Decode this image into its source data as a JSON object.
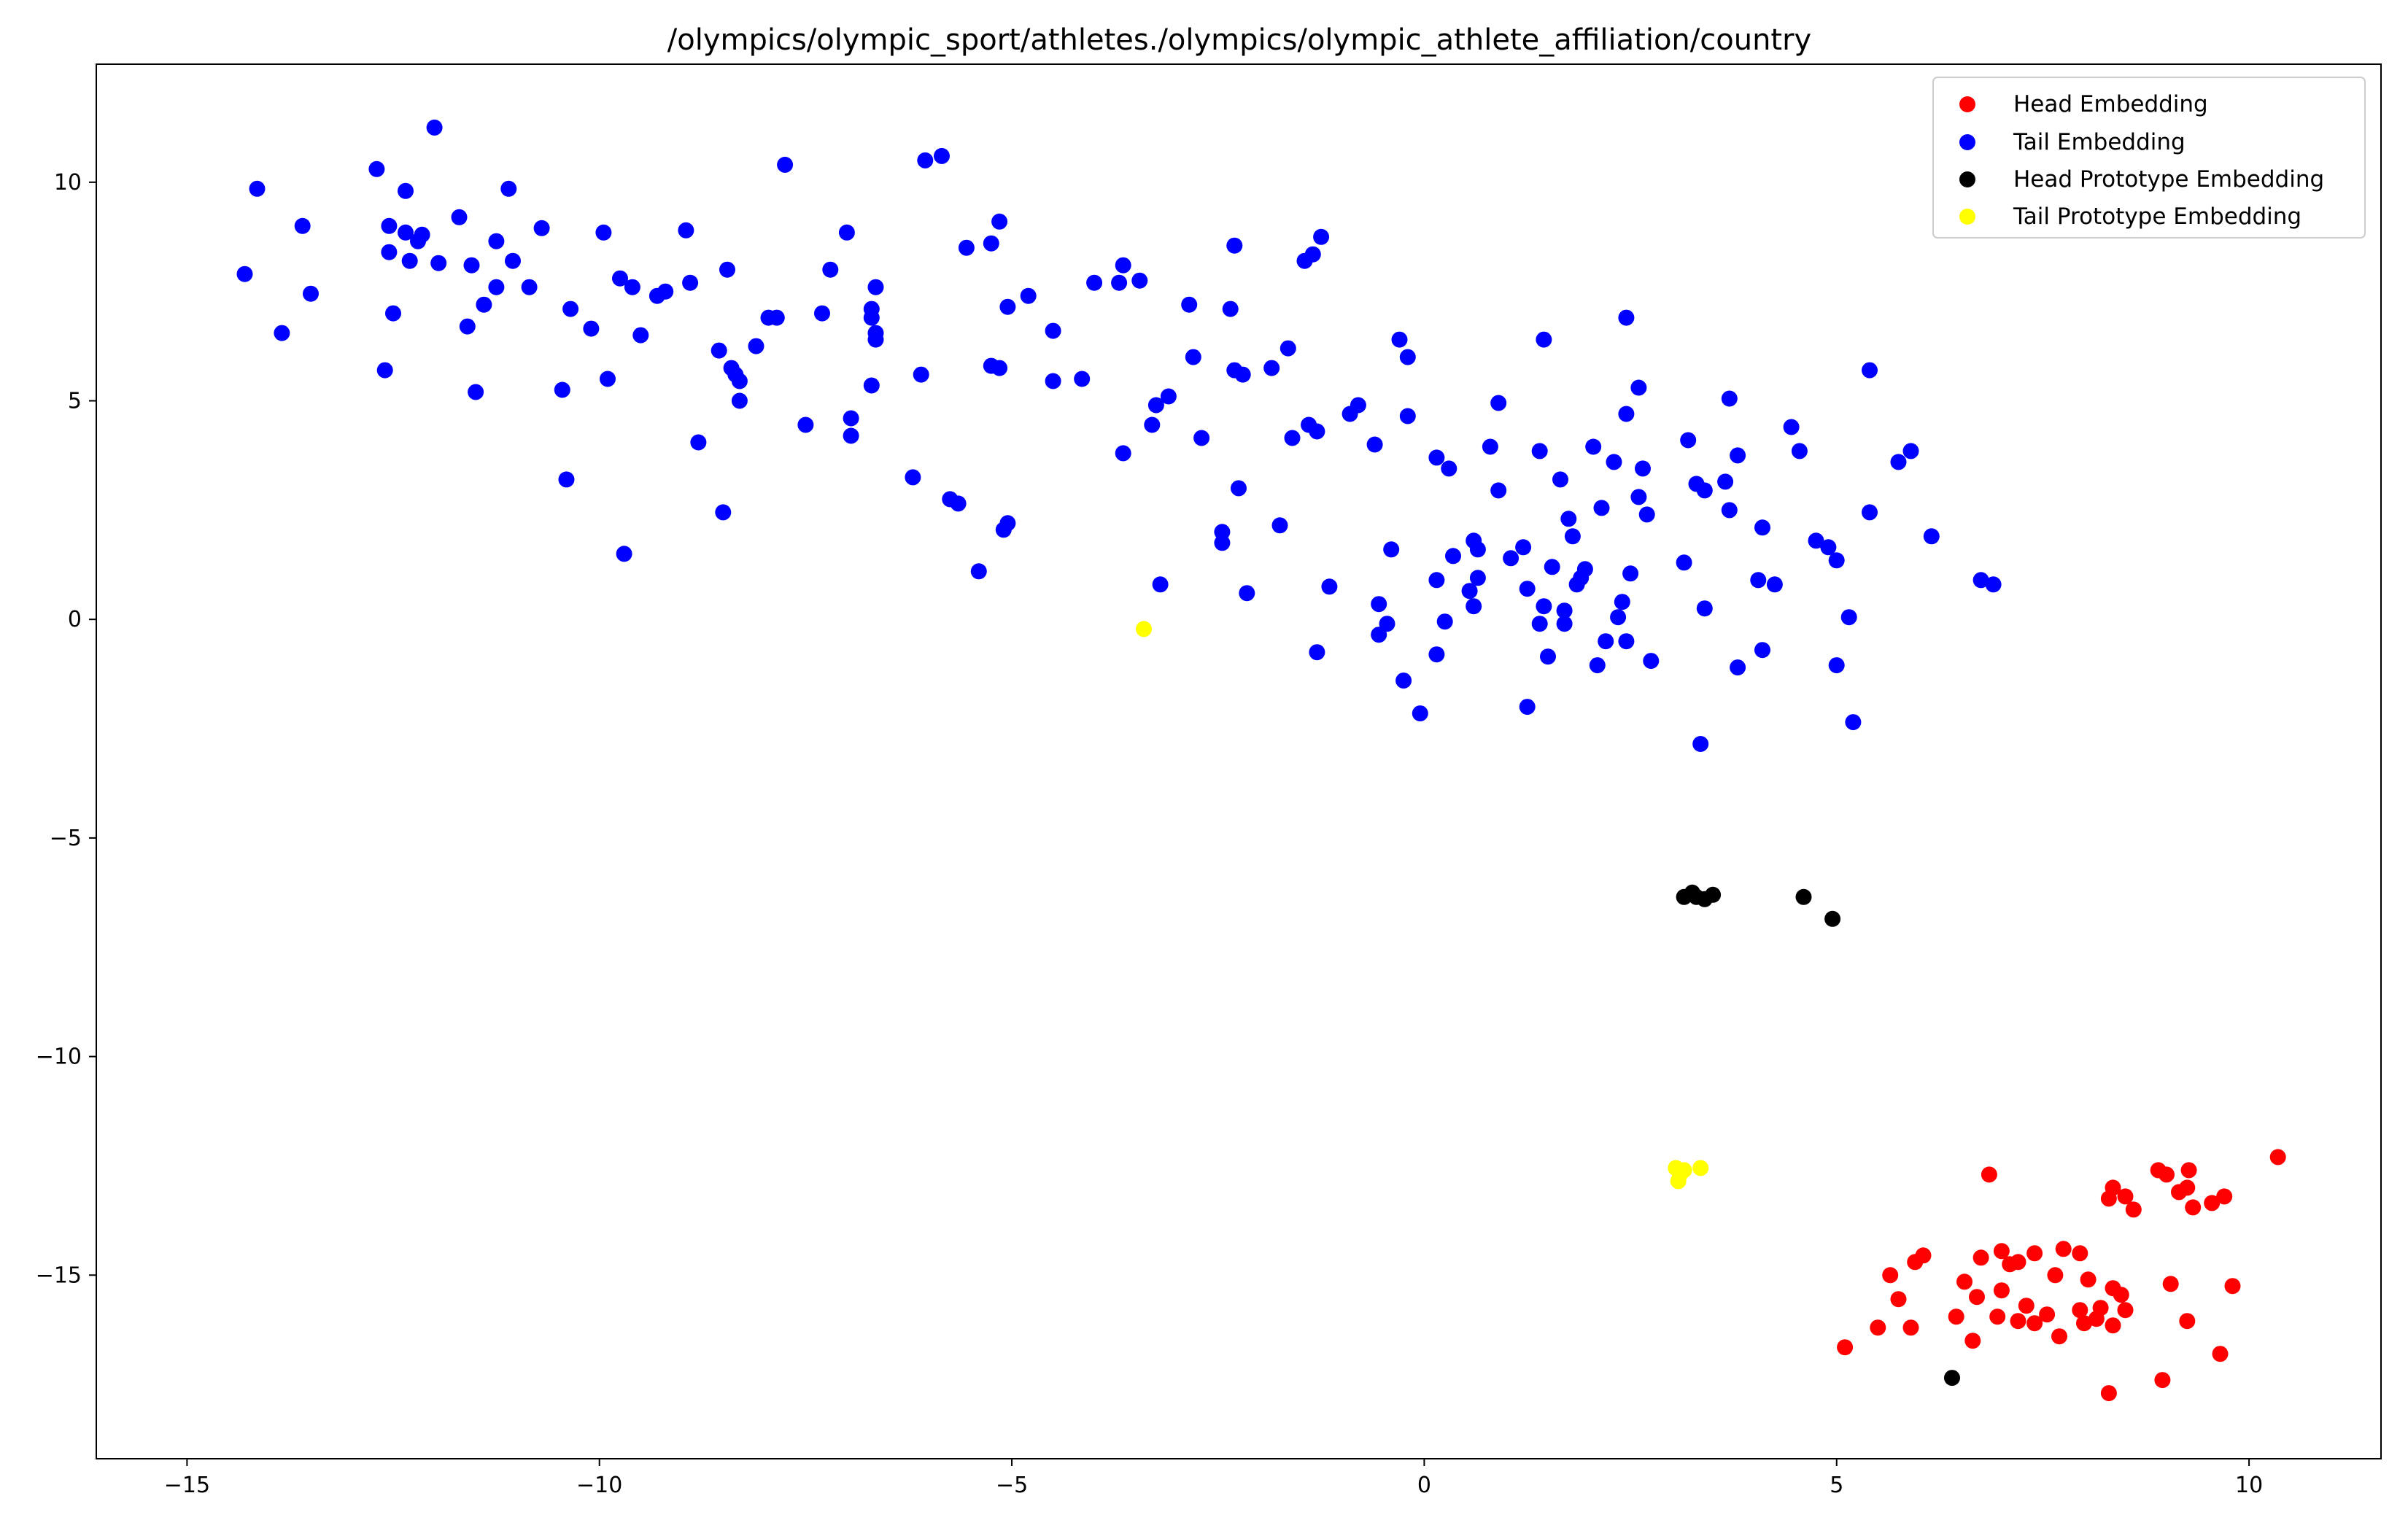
{
  "chart_data": {
    "type": "scatter",
    "title": "/olympics/olympic_sport/athletes./olympics/olympic_athlete_affiliation/country",
    "xlabel": "",
    "ylabel": "",
    "xlim": [
      -16.1,
      11.6
    ],
    "ylim": [
      -19.2,
      12.7
    ],
    "xticks": [
      -15,
      -10,
      -5,
      0,
      5,
      10
    ],
    "yticks": [
      10,
      5,
      0,
      -5,
      -10,
      -15
    ],
    "xtick_labels": [
      "−15",
      "−10",
      "−5",
      "0",
      "5",
      "10"
    ],
    "ytick_labels": [
      "10",
      "5",
      "0",
      "−5",
      "−10",
      "−15"
    ],
    "grid": false,
    "legend_position": "top-right",
    "series": [
      {
        "name": "Head Embedding",
        "color": "#ff0000",
        "points": [
          [
            10.35,
            -12.3
          ],
          [
            9.27,
            -12.6
          ],
          [
            9.0,
            -12.7
          ],
          [
            8.9,
            -12.6
          ],
          [
            9.7,
            -13.2
          ],
          [
            9.55,
            -13.35
          ],
          [
            9.25,
            -13.0
          ],
          [
            9.32,
            -13.45
          ],
          [
            9.15,
            -13.1
          ],
          [
            8.5,
            -13.2
          ],
          [
            8.6,
            -13.5
          ],
          [
            8.35,
            -13.0
          ],
          [
            8.3,
            -13.25
          ],
          [
            6.85,
            -12.7
          ],
          [
            7.95,
            -14.5
          ],
          [
            7.75,
            -14.4
          ],
          [
            7.4,
            -14.5
          ],
          [
            7.0,
            -14.45
          ],
          [
            6.05,
            -14.55
          ],
          [
            5.95,
            -14.7
          ],
          [
            7.1,
            -14.75
          ],
          [
            7.2,
            -14.7
          ],
          [
            6.75,
            -14.6
          ],
          [
            5.65,
            -15.0
          ],
          [
            6.55,
            -15.15
          ],
          [
            7.65,
            -15.0
          ],
          [
            8.05,
            -15.1
          ],
          [
            8.35,
            -15.3
          ],
          [
            8.45,
            -15.45
          ],
          [
            9.05,
            -15.2
          ],
          [
            9.8,
            -15.25
          ],
          [
            7.0,
            -15.35
          ],
          [
            5.75,
            -15.55
          ],
          [
            6.7,
            -15.5
          ],
          [
            7.3,
            -15.7
          ],
          [
            7.55,
            -15.9
          ],
          [
            7.95,
            -15.8
          ],
          [
            8.2,
            -15.75
          ],
          [
            8.5,
            -15.8
          ],
          [
            6.45,
            -15.95
          ],
          [
            6.95,
            -15.95
          ],
          [
            7.4,
            -16.1
          ],
          [
            7.2,
            -16.05
          ],
          [
            8.0,
            -16.1
          ],
          [
            8.15,
            -16.0
          ],
          [
            8.35,
            -16.15
          ],
          [
            9.25,
            -16.05
          ],
          [
            6.65,
            -16.5
          ],
          [
            7.7,
            -16.4
          ],
          [
            5.5,
            -16.2
          ],
          [
            5.9,
            -16.2
          ],
          [
            5.1,
            -16.65
          ],
          [
            9.65,
            -16.8
          ],
          [
            8.95,
            -17.4
          ],
          [
            8.3,
            -17.7
          ]
        ]
      },
      {
        "name": "Tail Embedding",
        "color": "#0000ff",
        "points": [
          [
            -14.3,
            7.9
          ],
          [
            -14.15,
            9.85
          ],
          [
            -13.85,
            6.55
          ],
          [
            -13.6,
            9.0
          ],
          [
            -13.5,
            7.45
          ],
          [
            -12.7,
            10.3
          ],
          [
            -12.55,
            9.0
          ],
          [
            -12.55,
            8.4
          ],
          [
            -12.5,
            7.0
          ],
          [
            -12.6,
            5.7
          ],
          [
            -12.35,
            9.8
          ],
          [
            -12.3,
            8.2
          ],
          [
            -12.35,
            8.85
          ],
          [
            -12.2,
            8.65
          ],
          [
            -12.15,
            8.8
          ],
          [
            -12.0,
            11.25
          ],
          [
            -11.95,
            8.15
          ],
          [
            -11.7,
            9.2
          ],
          [
            -11.6,
            6.7
          ],
          [
            -11.55,
            8.1
          ],
          [
            -11.5,
            5.2
          ],
          [
            -11.4,
            7.2
          ],
          [
            -11.25,
            7.6
          ],
          [
            -11.25,
            8.65
          ],
          [
            -11.1,
            9.85
          ],
          [
            -11.05,
            8.2
          ],
          [
            -10.85,
            7.6
          ],
          [
            -10.7,
            8.95
          ],
          [
            -10.45,
            5.25
          ],
          [
            -10.35,
            7.1
          ],
          [
            -10.4,
            3.2
          ],
          [
            -10.1,
            6.65
          ],
          [
            -9.95,
            8.85
          ],
          [
            -9.9,
            5.5
          ],
          [
            -9.75,
            7.8
          ],
          [
            -9.7,
            1.5
          ],
          [
            -9.6,
            7.6
          ],
          [
            -9.5,
            6.5
          ],
          [
            -9.3,
            7.4
          ],
          [
            -9.2,
            7.5
          ],
          [
            -8.95,
            8.9
          ],
          [
            -8.9,
            7.7
          ],
          [
            -8.8,
            4.05
          ],
          [
            -8.55,
            6.15
          ],
          [
            -8.5,
            2.45
          ],
          [
            -8.45,
            8.0
          ],
          [
            -8.4,
            5.75
          ],
          [
            -8.35,
            5.6
          ],
          [
            -8.3,
            5.45
          ],
          [
            -8.3,
            5.0
          ],
          [
            -8.1,
            6.25
          ],
          [
            -7.95,
            6.9
          ],
          [
            -7.85,
            6.9
          ],
          [
            -7.75,
            10.4
          ],
          [
            -7.5,
            4.45
          ],
          [
            -7.3,
            7.0
          ],
          [
            -7.2,
            8.0
          ],
          [
            -7.0,
            8.85
          ],
          [
            -6.95,
            4.6
          ],
          [
            -6.95,
            4.2
          ],
          [
            -6.7,
            7.1
          ],
          [
            -6.7,
            6.9
          ],
          [
            -6.7,
            5.35
          ],
          [
            -6.65,
            7.6
          ],
          [
            -6.65,
            6.55
          ],
          [
            -6.65,
            6.4
          ],
          [
            -6.2,
            3.25
          ],
          [
            -6.1,
            5.6
          ],
          [
            -6.05,
            10.5
          ],
          [
            -5.85,
            10.6
          ],
          [
            -5.75,
            2.75
          ],
          [
            -5.65,
            2.65
          ],
          [
            -5.55,
            8.5
          ],
          [
            -5.4,
            1.1
          ],
          [
            -5.25,
            8.6
          ],
          [
            -5.25,
            5.8
          ],
          [
            -5.15,
            5.75
          ],
          [
            -5.15,
            9.1
          ],
          [
            -5.1,
            2.05
          ],
          [
            -5.05,
            2.2
          ],
          [
            -5.05,
            7.15
          ],
          [
            -4.8,
            7.4
          ],
          [
            -4.5,
            6.6
          ],
          [
            -4.5,
            5.45
          ],
          [
            -4.15,
            5.5
          ],
          [
            -4.0,
            7.7
          ],
          [
            -3.7,
            7.7
          ],
          [
            -3.65,
            8.1
          ],
          [
            -3.65,
            3.8
          ],
          [
            -3.45,
            7.75
          ],
          [
            -3.3,
            4.45
          ],
          [
            -3.25,
            4.9
          ],
          [
            -3.2,
            0.8
          ],
          [
            -3.1,
            5.1
          ],
          [
            -2.85,
            7.2
          ],
          [
            -2.8,
            6.0
          ],
          [
            -2.7,
            4.15
          ],
          [
            -2.45,
            1.75
          ],
          [
            -2.45,
            2.0
          ],
          [
            -2.35,
            7.1
          ],
          [
            -2.3,
            8.55
          ],
          [
            -2.3,
            5.7
          ],
          [
            -2.25,
            3.0
          ],
          [
            -2.2,
            5.6
          ],
          [
            -2.15,
            0.6
          ],
          [
            -1.85,
            5.75
          ],
          [
            -1.75,
            2.15
          ],
          [
            -1.65,
            6.2
          ],
          [
            -1.6,
            4.15
          ],
          [
            -1.4,
            4.45
          ],
          [
            -1.45,
            8.2
          ],
          [
            -1.3,
            4.3
          ],
          [
            -1.35,
            8.35
          ],
          [
            -1.3,
            -0.75
          ],
          [
            -1.25,
            8.75
          ],
          [
            -1.15,
            0.75
          ],
          [
            -0.9,
            4.7
          ],
          [
            -0.8,
            4.9
          ],
          [
            -0.6,
            4.0
          ],
          [
            -0.55,
            -0.35
          ],
          [
            -0.55,
            0.35
          ],
          [
            -0.45,
            -0.1
          ],
          [
            -0.4,
            1.6
          ],
          [
            -0.3,
            6.4
          ],
          [
            -0.25,
            -1.4
          ],
          [
            -0.2,
            6.0
          ],
          [
            -0.2,
            4.65
          ],
          [
            -0.05,
            -2.15
          ],
          [
            0.15,
            3.7
          ],
          [
            0.15,
            0.9
          ],
          [
            0.15,
            -0.8
          ],
          [
            0.25,
            -0.05
          ],
          [
            0.3,
            3.45
          ],
          [
            0.35,
            1.45
          ],
          [
            0.55,
            0.65
          ],
          [
            0.6,
            0.3
          ],
          [
            0.6,
            1.8
          ],
          [
            0.65,
            0.95
          ],
          [
            0.65,
            1.6
          ],
          [
            0.8,
            3.95
          ],
          [
            0.9,
            2.95
          ],
          [
            0.9,
            4.95
          ],
          [
            1.05,
            1.4
          ],
          [
            1.2,
            1.65
          ],
          [
            1.25,
            0.7
          ],
          [
            1.25,
            -2.0
          ],
          [
            1.4,
            3.85
          ],
          [
            1.4,
            -0.1
          ],
          [
            1.45,
            0.3
          ],
          [
            1.45,
            6.4
          ],
          [
            1.5,
            -0.85
          ],
          [
            1.55,
            1.2
          ],
          [
            1.65,
            3.2
          ],
          [
            1.7,
            0.2
          ],
          [
            1.7,
            -0.1
          ],
          [
            1.75,
            2.3
          ],
          [
            1.8,
            1.9
          ],
          [
            1.85,
            0.8
          ],
          [
            1.9,
            0.95
          ],
          [
            1.95,
            1.15
          ],
          [
            2.05,
            3.95
          ],
          [
            2.1,
            -1.05
          ],
          [
            2.15,
            2.55
          ],
          [
            2.2,
            -0.5
          ],
          [
            2.3,
            3.6
          ],
          [
            2.35,
            0.05
          ],
          [
            2.4,
            0.4
          ],
          [
            2.45,
            -0.5
          ],
          [
            2.45,
            4.7
          ],
          [
            2.45,
            6.9
          ],
          [
            2.5,
            1.05
          ],
          [
            2.6,
            2.8
          ],
          [
            2.6,
            5.3
          ],
          [
            2.65,
            3.45
          ],
          [
            2.7,
            2.4
          ],
          [
            2.75,
            -0.95
          ],
          [
            3.15,
            1.3
          ],
          [
            3.2,
            4.1
          ],
          [
            3.3,
            3.1
          ],
          [
            3.35,
            -2.85
          ],
          [
            3.4,
            2.95
          ],
          [
            3.4,
            0.25
          ],
          [
            3.65,
            3.15
          ],
          [
            3.7,
            5.05
          ],
          [
            3.7,
            2.5
          ],
          [
            3.8,
            -1.1
          ],
          [
            3.8,
            3.75
          ],
          [
            4.05,
            0.9
          ],
          [
            4.1,
            -0.7
          ],
          [
            4.1,
            2.1
          ],
          [
            4.25,
            0.8
          ],
          [
            4.45,
            4.4
          ],
          [
            4.55,
            3.85
          ],
          [
            4.75,
            1.8
          ],
          [
            4.9,
            1.65
          ],
          [
            5.0,
            1.35
          ],
          [
            5.0,
            -1.05
          ],
          [
            5.15,
            0.05
          ],
          [
            5.2,
            -2.35
          ],
          [
            5.4,
            5.7
          ],
          [
            5.4,
            2.45
          ],
          [
            5.75,
            3.6
          ],
          [
            5.9,
            3.85
          ],
          [
            6.15,
            1.9
          ],
          [
            6.75,
            0.9
          ],
          [
            6.9,
            0.8
          ]
        ]
      },
      {
        "name": "Head Prototype Embedding",
        "color": "#000000",
        "points": [
          [
            3.15,
            -6.35
          ],
          [
            3.25,
            -6.25
          ],
          [
            3.3,
            -6.35
          ],
          [
            3.4,
            -6.4
          ],
          [
            3.5,
            -6.3
          ],
          [
            4.6,
            -6.35
          ],
          [
            4.95,
            -6.85
          ],
          [
            6.4,
            -17.35
          ]
        ]
      },
      {
        "name": "Tail Prototype Embedding",
        "color": "#ffff00",
        "points": [
          [
            -3.4,
            -0.22
          ],
          [
            3.05,
            -12.55
          ],
          [
            3.1,
            -12.7
          ],
          [
            3.08,
            -12.85
          ],
          [
            3.15,
            -12.6
          ],
          [
            3.35,
            -12.55
          ]
        ]
      }
    ]
  }
}
